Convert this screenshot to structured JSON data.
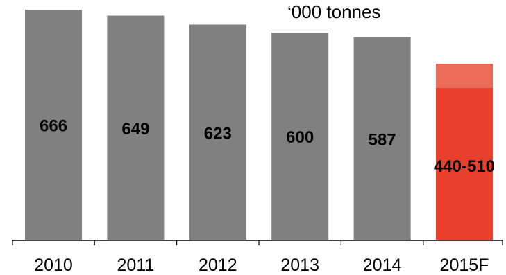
{
  "chart_data": {
    "type": "bar",
    "unit": "‘000 tonnes",
    "categories": [
      "2010",
      "2011",
      "2012",
      "2013",
      "2014",
      "2015F"
    ],
    "values": [
      666,
      649,
      623,
      600,
      587,
      null
    ],
    "forecast_range": [
      440,
      510
    ],
    "data_labels": [
      "666",
      "649",
      "623",
      "600",
      "587",
      "440-510"
    ],
    "ylim": [
      0,
      700
    ],
    "grid": false,
    "legend": "none",
    "colors": {
      "bar": "#808080",
      "forecast_low": "#e8402d",
      "forecast_high": "#ec6b58",
      "axis": "#000000",
      "text": "#000000"
    }
  }
}
